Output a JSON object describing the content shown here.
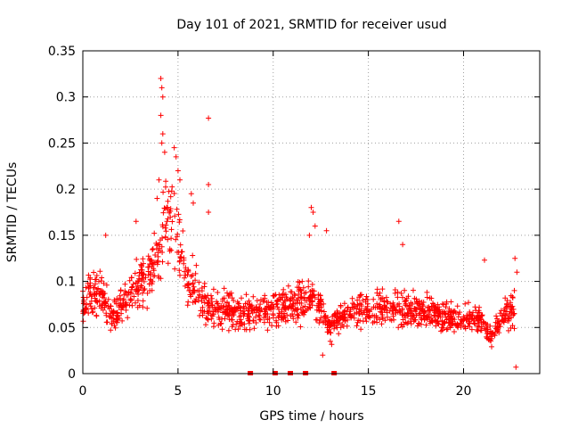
{
  "chart_data": {
    "type": "scatter",
    "title": "Day 101 of 2021, SRMTID for receiver usud",
    "xlabel": "GPS time / hours",
    "ylabel": "SRMTID / TECUs",
    "xlim": [
      0,
      24
    ],
    "ylim": [
      0,
      0.35
    ],
    "x_ticks": [
      0,
      5,
      10,
      15,
      20
    ],
    "x_tick_labels": [
      "0",
      "5",
      "10",
      "15",
      "20"
    ],
    "y_ticks": [
      0,
      0.05,
      0.1,
      0.15,
      0.2,
      0.25,
      0.3,
      0.35
    ],
    "y_tick_labels": [
      "0",
      "0.05",
      "0.1",
      "0.15",
      "0.2",
      "0.25",
      "0.3",
      "0.35"
    ],
    "grid": true,
    "legend": "none",
    "marker": "+",
    "color": "#ff0000",
    "series": [
      {
        "name": "SRMTID",
        "envelope_points": [
          [
            0.0,
            0.07
          ],
          [
            0.4,
            0.085
          ],
          [
            0.8,
            0.09
          ],
          [
            1.2,
            0.08
          ],
          [
            1.5,
            0.06
          ],
          [
            2.0,
            0.075
          ],
          [
            2.5,
            0.09
          ],
          [
            3.0,
            0.1
          ],
          [
            3.5,
            0.11
          ],
          [
            4.0,
            0.13
          ],
          [
            4.3,
            0.17
          ],
          [
            4.7,
            0.16
          ],
          [
            5.0,
            0.15
          ],
          [
            5.5,
            0.1
          ],
          [
            6.0,
            0.09
          ],
          [
            6.5,
            0.075
          ],
          [
            7.0,
            0.07
          ],
          [
            8.0,
            0.065
          ],
          [
            9.0,
            0.068
          ],
          [
            10.0,
            0.07
          ],
          [
            11.0,
            0.075
          ],
          [
            12.0,
            0.08
          ],
          [
            12.5,
            0.07
          ],
          [
            13.0,
            0.05
          ],
          [
            13.5,
            0.06
          ],
          [
            14.0,
            0.065
          ],
          [
            15.0,
            0.07
          ],
          [
            16.0,
            0.072
          ],
          [
            17.0,
            0.07
          ],
          [
            18.0,
            0.068
          ],
          [
            19.0,
            0.06
          ],
          [
            20.0,
            0.06
          ],
          [
            21.0,
            0.055
          ],
          [
            21.5,
            0.04
          ],
          [
            22.0,
            0.06
          ],
          [
            22.7,
            0.07
          ]
        ],
        "highlight_points": [
          [
            4.1,
            0.32
          ],
          [
            4.15,
            0.31
          ],
          [
            4.2,
            0.3
          ],
          [
            4.1,
            0.28
          ],
          [
            4.2,
            0.26
          ],
          [
            4.15,
            0.25
          ],
          [
            4.3,
            0.24
          ],
          [
            4.8,
            0.245
          ],
          [
            4.9,
            0.235
          ],
          [
            5.0,
            0.22
          ],
          [
            5.1,
            0.21
          ],
          [
            4.0,
            0.21
          ],
          [
            3.9,
            0.19
          ],
          [
            6.6,
            0.277
          ],
          [
            6.6,
            0.205
          ],
          [
            5.7,
            0.195
          ],
          [
            5.8,
            0.185
          ],
          [
            6.6,
            0.175
          ],
          [
            12.0,
            0.18
          ],
          [
            12.1,
            0.175
          ],
          [
            12.2,
            0.16
          ],
          [
            11.9,
            0.15
          ],
          [
            16.6,
            0.165
          ],
          [
            12.8,
            0.155
          ],
          [
            2.8,
            0.165
          ],
          [
            1.2,
            0.15
          ],
          [
            16.8,
            0.14
          ],
          [
            22.7,
            0.125
          ],
          [
            22.8,
            0.11
          ],
          [
            21.1,
            0.123
          ],
          [
            22.75,
            0.007
          ],
          [
            13.0,
            0.035
          ],
          [
            12.6,
            0.02
          ]
        ],
        "zero_points": [
          8.8,
          10.1,
          10.9,
          11.7,
          13.2
        ]
      }
    ]
  }
}
